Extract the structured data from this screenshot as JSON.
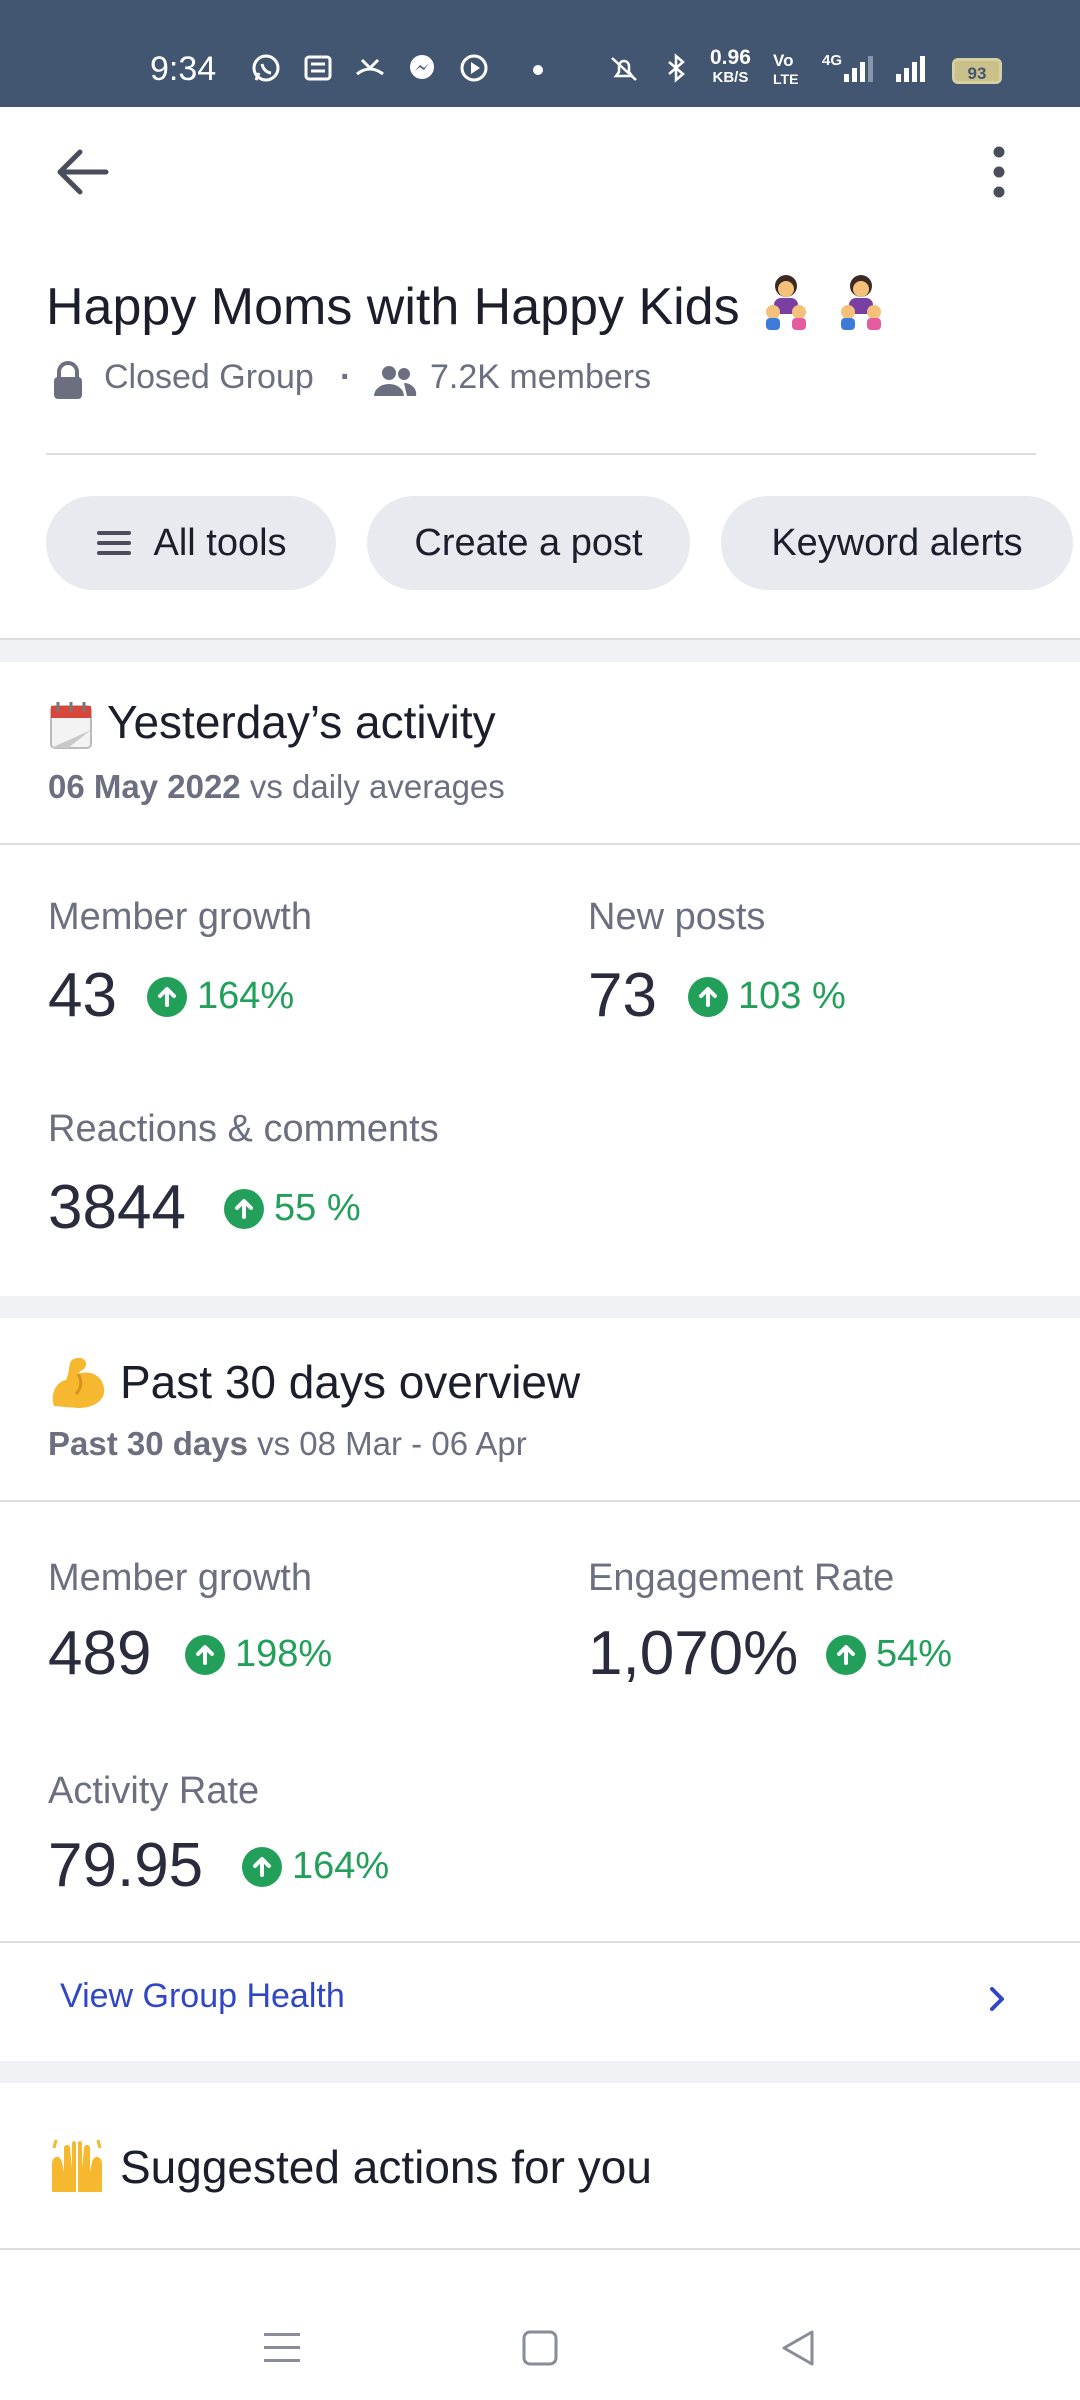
{
  "status_bar": {
    "time": "9:34",
    "net_speed_top": "0.96",
    "net_speed_bottom": "KB/S",
    "volte_top": "Vo",
    "volte_bottom": "LTE",
    "network": "4G",
    "battery": "93"
  },
  "header": {
    "back_icon": "arrow-left-icon",
    "more_icon": "more-vertical-icon",
    "group_name": "Happy Moms with Happy Kids",
    "privacy": "Closed Group",
    "separator": "·",
    "members": "7.2K members"
  },
  "chips": {
    "all_tools": "All tools",
    "create_post": "Create a post",
    "keyword_alerts": "Keyword alerts"
  },
  "yesterday": {
    "title": "Yesterday’s activity",
    "date": "06 May 2022",
    "compare": " vs daily averages",
    "metrics": [
      {
        "label": "Member growth",
        "value": "43",
        "delta": "164%"
      },
      {
        "label": "New posts",
        "value": "73",
        "delta": "103 %"
      },
      {
        "label": "Reactions & comments",
        "value": "3844",
        "delta": "55 %"
      }
    ]
  },
  "past30": {
    "title": "Past 30 days overview",
    "range": "Past 30 days",
    "compare": " vs 08 Mar - 06 Apr",
    "metrics": [
      {
        "label": "Member growth",
        "value": "489",
        "delta": "198%"
      },
      {
        "label": "Engagement Rate",
        "value": "1,070%",
        "delta": "54%"
      },
      {
        "label": "Activity Rate",
        "value": "79.95",
        "delta": "164%"
      }
    ],
    "link": "View Group Health"
  },
  "suggested": {
    "title": "Suggested actions for you"
  },
  "colors": {
    "status_bar": "#435671",
    "positive": "#22a05a",
    "link": "#2f47c6",
    "chip_bg": "#e9eaf0"
  }
}
